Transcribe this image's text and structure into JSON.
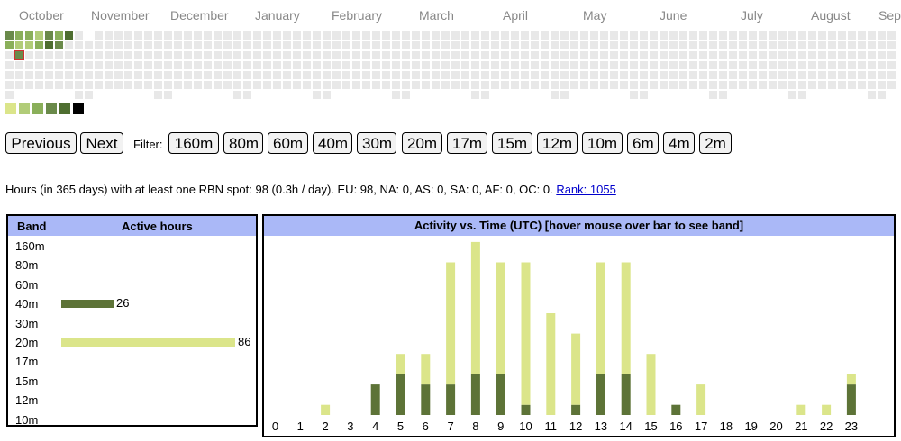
{
  "calendar": {
    "months": [
      "October",
      "November",
      "December",
      "January",
      "February",
      "March",
      "April",
      "May",
      "June",
      "July",
      "August",
      "Sep"
    ]
  },
  "legend": {
    "colors": [
      "#dbe58a",
      "#b1cc78",
      "#8aaf5a",
      "#6a8a4a",
      "#4e6e30",
      "#000000"
    ]
  },
  "controls": {
    "previous_label": "Previous",
    "next_label": "Next",
    "filter_label": "Filter:",
    "filters": [
      "160m",
      "80m",
      "60m",
      "40m",
      "30m",
      "20m",
      "17m",
      "15m",
      "12m",
      "10m",
      "6m",
      "4m",
      "2m"
    ]
  },
  "summary": {
    "text": "Hours (in 365 days) with at least one RBN spot: 98 (0.3h / day). EU: 98, NA: 0, AS: 0, SA: 0, AF: 0, OC: 0.",
    "rank_label": "Rank: 1055"
  },
  "band_table": {
    "header_band": "Band",
    "header_hours": "Active hours",
    "rows": [
      {
        "band": "160m",
        "hours": null
      },
      {
        "band": "80m",
        "hours": null
      },
      {
        "band": "60m",
        "hours": null
      },
      {
        "band": "40m",
        "hours": 26
      },
      {
        "band": "30m",
        "hours": null
      },
      {
        "band": "20m",
        "hours": 86
      },
      {
        "band": "17m",
        "hours": null
      },
      {
        "band": "15m",
        "hours": null
      },
      {
        "band": "12m",
        "hours": null
      },
      {
        "band": "10m",
        "hours": null
      }
    ],
    "colors": {
      "40m": "#5d7337",
      "20m": "#dbe58a"
    }
  },
  "time_chart_title": "Activity vs. Time (UTC) [hover mouse over bar to see band]",
  "chart_data": {
    "type": "bar",
    "title": "Activity vs. Time (UTC) [hover mouse over bar to see band]",
    "categories": [
      "0",
      "1",
      "2",
      "3",
      "4",
      "5",
      "6",
      "7",
      "8",
      "9",
      "10",
      "11",
      "12",
      "13",
      "14",
      "15",
      "16",
      "17",
      "18",
      "19",
      "20",
      "21",
      "22",
      "23"
    ],
    "series": [
      {
        "name": "40m",
        "color": "#5d7337",
        "values": [
          0,
          0,
          0,
          0,
          3,
          4,
          3,
          3,
          4,
          4,
          1,
          0,
          1,
          4,
          4,
          0,
          1,
          0,
          0,
          0,
          0,
          0,
          0,
          3
        ]
      },
      {
        "name": "20m",
        "color": "#dbe58a",
        "values": [
          0,
          0,
          1,
          0,
          0,
          2,
          3,
          12,
          13,
          11,
          14,
          10,
          7,
          11,
          11,
          6,
          0,
          3,
          0,
          0,
          0,
          1,
          1,
          1
        ]
      }
    ],
    "stacked": true
  }
}
